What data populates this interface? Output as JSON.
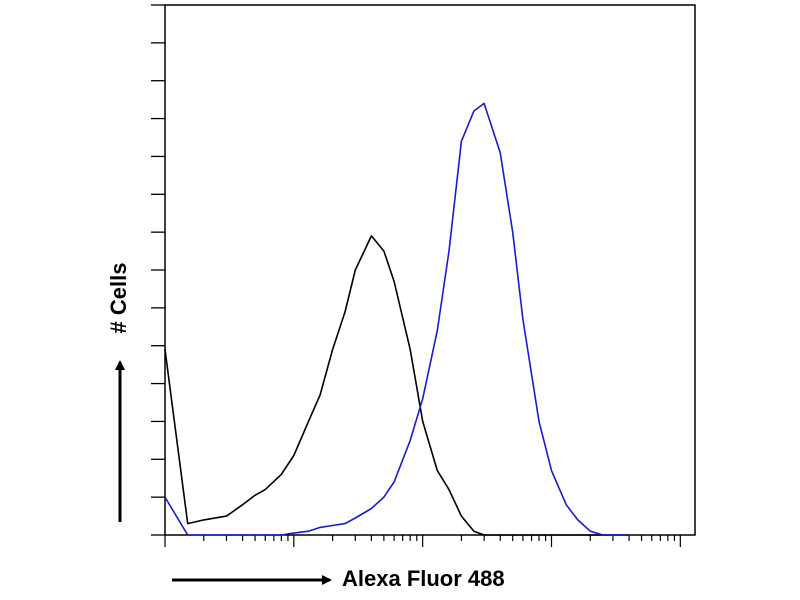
{
  "chart_data": {
    "type": "line",
    "xlabel": "Alexa Fluor 488",
    "ylabel": "# Cells",
    "xscale": "log",
    "x": [
      1,
      1.5,
      2,
      3,
      4,
      5,
      6,
      8,
      10,
      13,
      16,
      20,
      25,
      30,
      40,
      50,
      60,
      80,
      100,
      130,
      160,
      200,
      250,
      300,
      400,
      500,
      600,
      800,
      1000,
      1300,
      1600,
      2000,
      2500,
      3000,
      4000
    ],
    "series": [
      {
        "color": "#000000",
        "values": [
          4.9,
          0.3,
          0.4,
          0.5,
          0.8,
          1.05,
          1.2,
          1.6,
          2.1,
          3.0,
          3.7,
          4.9,
          5.9,
          7.0,
          7.9,
          7.5,
          6.7,
          4.9,
          3.0,
          1.7,
          1.2,
          0.5,
          0.1,
          0,
          0,
          0,
          0,
          0,
          0,
          0,
          0,
          0,
          0,
          0,
          0
        ]
      },
      {
        "color": "#1a1ad0",
        "values": [
          1.0,
          0,
          0,
          0,
          0,
          0,
          0,
          0,
          0.05,
          0.1,
          0.2,
          0.25,
          0.3,
          0.45,
          0.7,
          1.0,
          1.4,
          2.5,
          3.6,
          5.4,
          7.5,
          10.4,
          11.2,
          11.4,
          10.1,
          8.0,
          5.7,
          3.0,
          1.7,
          0.8,
          0.4,
          0.1,
          0,
          0,
          0
        ]
      }
    ],
    "xlim": [
      1,
      13000
    ],
    "xticks": [
      1,
      2,
      3,
      4,
      5,
      6,
      7,
      8,
      9,
      10,
      20,
      30,
      40,
      50,
      60,
      70,
      80,
      90,
      100,
      200,
      300,
      400,
      500,
      600,
      700,
      800,
      900,
      1000,
      2000,
      3000,
      4000,
      5000,
      6000,
      7000,
      8000,
      9000,
      10000
    ],
    "ylim": [
      0,
      14
    ],
    "yticks": [
      0,
      1,
      2,
      3,
      4,
      5,
      6,
      7,
      8,
      9,
      10,
      11,
      12,
      13,
      14
    ]
  }
}
